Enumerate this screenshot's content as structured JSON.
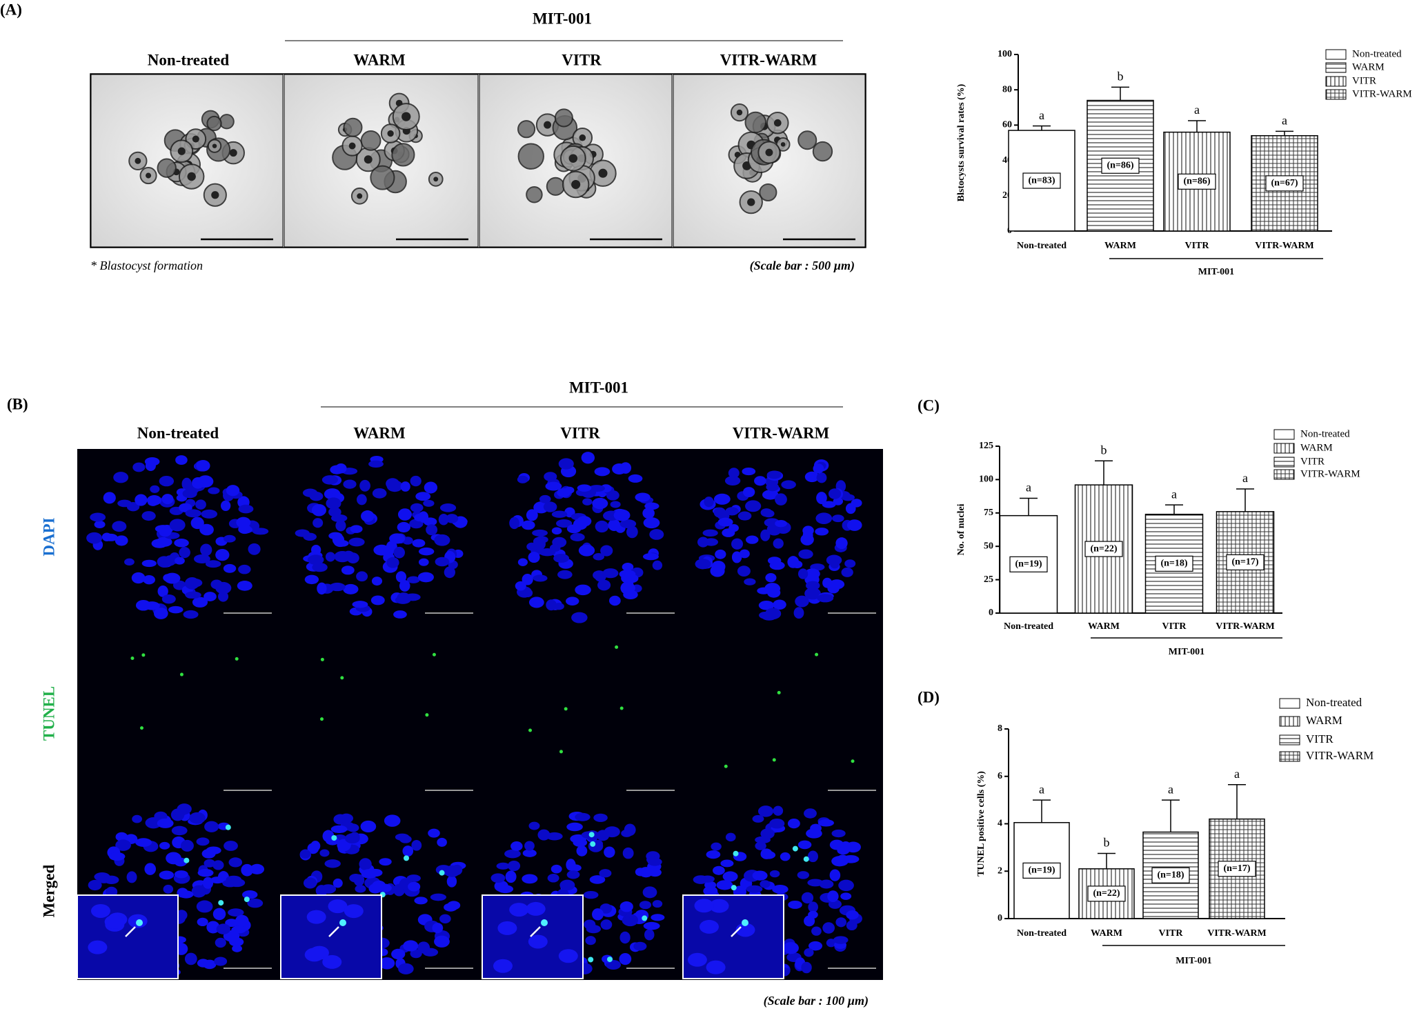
{
  "figure": {
    "panel_A": {
      "label": "(A)",
      "group": "MIT-001",
      "columns": [
        "Non-treated",
        "WARM",
        "VITR",
        "VITR-WARM"
      ],
      "note": "* Blastocyst formation",
      "scale": "(Scale bar : 500 µm)"
    },
    "panel_B": {
      "label": "(B)",
      "group": "MIT-001",
      "columns": [
        "Non-treated",
        "WARM",
        "VITR",
        "VITR-WARM"
      ],
      "rows": [
        "DAPI",
        "TUNEL",
        "Merged"
      ],
      "scale": "(Scale bar : 100 µm)"
    },
    "panel_C": {
      "label": "(C)"
    },
    "panel_D": {
      "label": "(D)"
    }
  },
  "chart_data": [
    {
      "type": "bar",
      "ylabel": "Blstocysts survival rates (%)",
      "categories": [
        "Non-treated",
        "WARM",
        "VITR",
        "VITR-WARM"
      ],
      "group_label": "MIT-001",
      "values": [
        57,
        74,
        56,
        54
      ],
      "errors": [
        2.5,
        7.5,
        6.5,
        2.5
      ],
      "letters": [
        "a",
        "b",
        "a",
        "a"
      ],
      "n_labels": [
        "(n=83)",
        "(n=86)",
        "(n=86)",
        "(n=67)"
      ],
      "patterns": [
        "none",
        "horizontal",
        "vertical",
        "grid"
      ],
      "ylim": [
        0,
        100
      ],
      "yticks": [
        0,
        20,
        40,
        60,
        80,
        100
      ]
    },
    {
      "type": "bar",
      "ylabel": "No. of nuclei",
      "categories": [
        "Non-treated",
        "WARM",
        "VITR",
        "VITR-WARM"
      ],
      "group_label": "MIT-001",
      "values": [
        73,
        96,
        74,
        76
      ],
      "errors": [
        13,
        18,
        7,
        17
      ],
      "letters": [
        "a",
        "b",
        "a",
        "a"
      ],
      "n_labels": [
        "(n=19)",
        "(n=22)",
        "(n=18)",
        "(n=17)"
      ],
      "patterns": [
        "none",
        "vertical",
        "horizontal",
        "grid"
      ],
      "ylim": [
        0,
        125
      ],
      "yticks": [
        0,
        25,
        50,
        75,
        100,
        125
      ]
    },
    {
      "type": "bar",
      "ylabel": "TUNEL positive cells (%)",
      "categories": [
        "Non-treated",
        "WARM",
        "VITR",
        "VITR-WARM"
      ],
      "group_label": "MIT-001",
      "values": [
        4.05,
        2.1,
        3.65,
        4.2
      ],
      "errors": [
        0.95,
        0.65,
        1.35,
        1.45
      ],
      "letters": [
        "a",
        "b",
        "a",
        "a"
      ],
      "n_labels": [
        "(n=19)",
        "(n=22)",
        "(n=18)",
        "(n=17)"
      ],
      "patterns": [
        "none",
        "vertical",
        "horizontal",
        "grid"
      ],
      "ylim": [
        0,
        8
      ],
      "yticks": [
        0,
        2,
        4,
        6,
        8
      ]
    }
  ]
}
